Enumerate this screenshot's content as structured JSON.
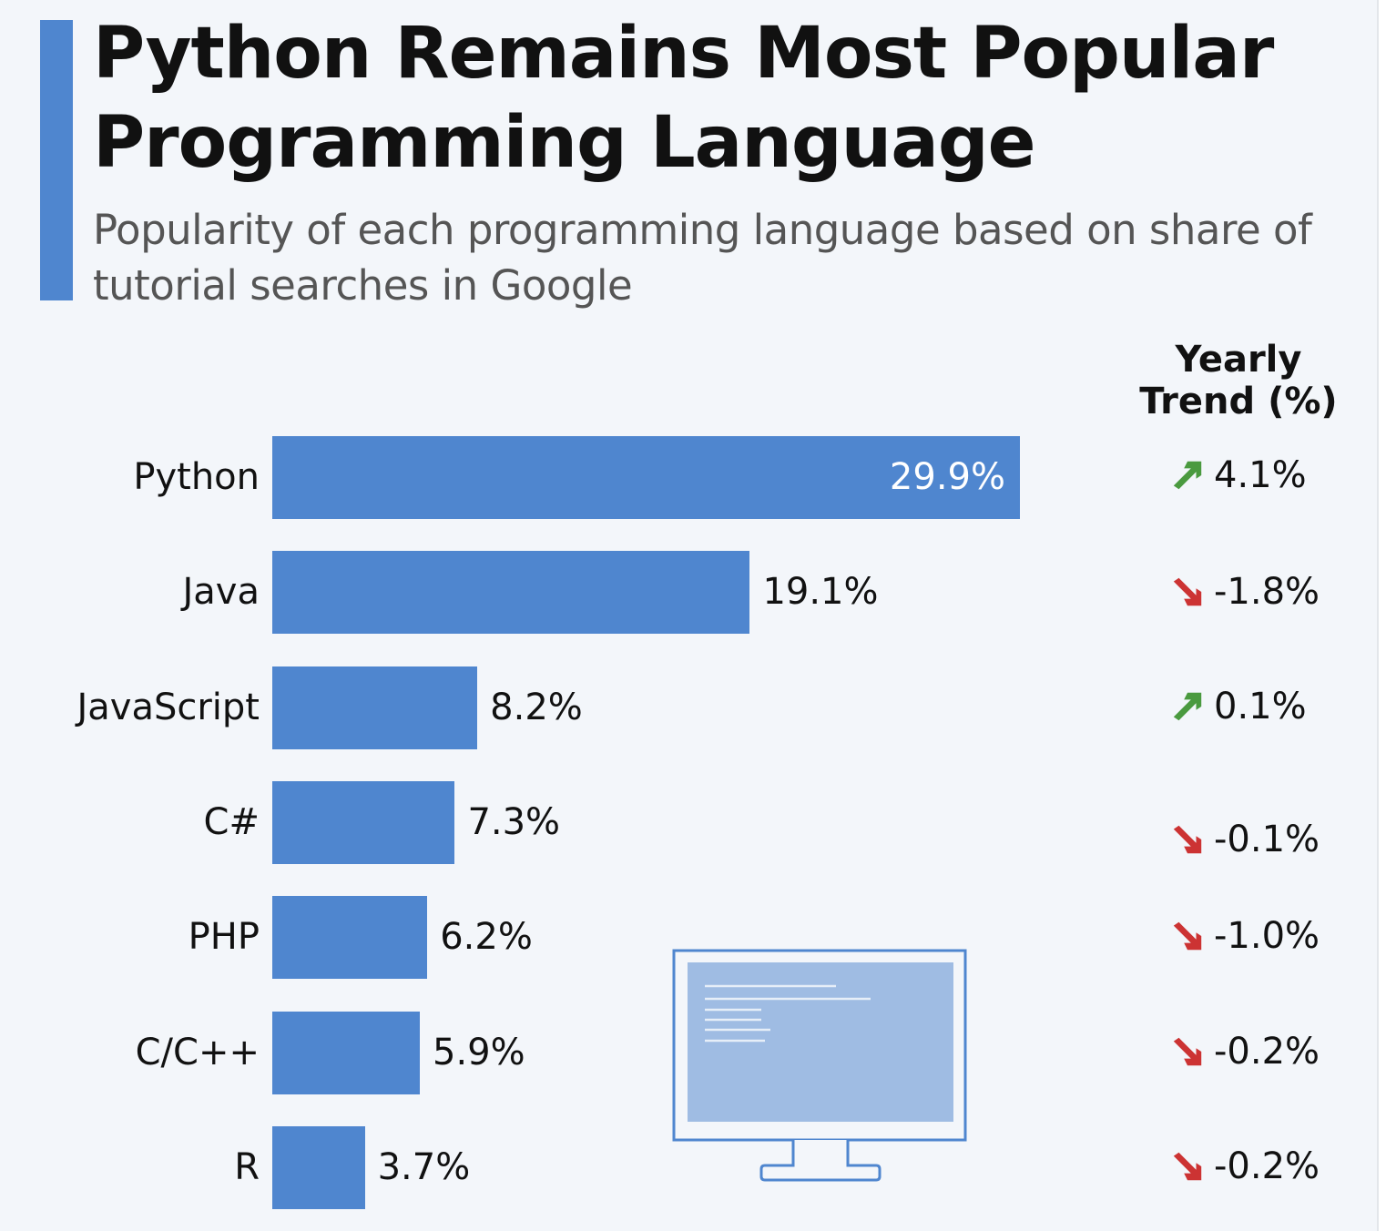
{
  "title_lines": [
    "Python Remains Most Popular",
    "Programming Language"
  ],
  "subtitle": "Popularity of each programming language based on share of tutorial searches in Google",
  "colors": {
    "bar": "#4f86cf",
    "up": "#4a9a3f",
    "down": "#cc3333",
    "accent": "#4f86cf"
  },
  "chart_data": {
    "type": "bar",
    "orientation": "horizontal",
    "title": "Python Remains Most Popular Programming Language",
    "subtitle": "Popularity of each programming language based on share of tutorial searches in Google",
    "categories": [
      "Python",
      "Java",
      "JavaScript",
      "C#",
      "PHP",
      "C/C++",
      "R"
    ],
    "values": [
      29.9,
      19.1,
      8.2,
      7.3,
      6.2,
      5.9,
      3.7
    ],
    "value_labels": [
      "29.9%",
      "19.1%",
      "8.2%",
      "7.3%",
      "6.2%",
      "5.9%",
      "3.7%"
    ],
    "trend_header": "Yearly Trend (%)",
    "trend_header_lines": [
      "Yearly",
      "Trend (%)"
    ],
    "trend_values": [
      4.1,
      -1.8,
      0.1,
      -0.1,
      -1.0,
      -0.2,
      -0.2
    ],
    "trend_labels": [
      "4.1%",
      "-1.8%",
      "0.1%",
      "-0.1%",
      "-1.0%",
      "-0.2%",
      "-0.2%"
    ],
    "trend_icons": [
      "arrow-up-right",
      "arrow-down-right",
      "arrow-up-right",
      "arrow-down-right",
      "arrow-down-right",
      "arrow-down-right",
      "arrow-down-right"
    ],
    "grid": false,
    "legend": "none"
  }
}
